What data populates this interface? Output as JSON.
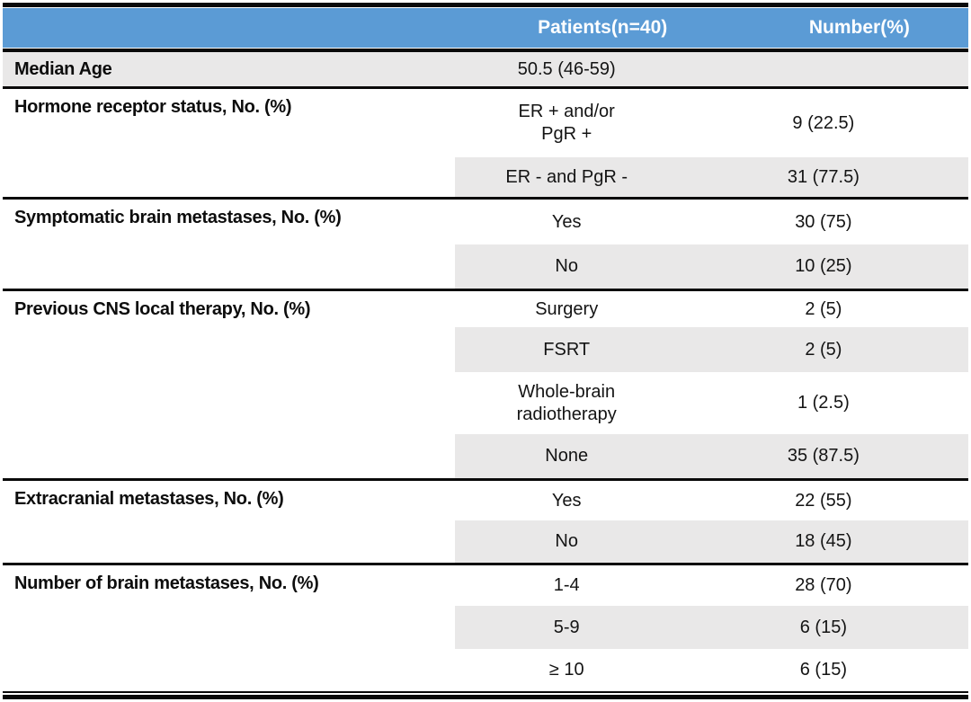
{
  "colors": {
    "header_bg": "#5B9BD5",
    "header_text": "#FFFFFF",
    "row_shade": "#E9E8E8",
    "rule": "#0A0A0A",
    "label_text": "#0D0D0D",
    "value_text": "#141414"
  },
  "header": {
    "col1": "",
    "col2": "Patients(n=40)",
    "col3": "Number(%)"
  },
  "sections": [
    {
      "label": "Median Age",
      "rows": [
        {
          "value": "50.5 (46-59)",
          "number": "",
          "shaded": true,
          "full_width": true
        }
      ]
    },
    {
      "label": "Hormone receptor status, No. (%)",
      "rows": [
        {
          "value": "ER + and/or\nPgR +",
          "number": "9 (22.5)",
          "shaded": false
        },
        {
          "value": "ER - and PgR -",
          "number": "31 (77.5)",
          "shaded": true
        }
      ]
    },
    {
      "label": "Symptomatic brain metastases, No. (%)",
      "rows": [
        {
          "value": "Yes",
          "number": "30 (75)",
          "shaded": false
        },
        {
          "value": "No",
          "number": "10 (25)",
          "shaded": true
        }
      ]
    },
    {
      "label": "Previous CNS local therapy, No. (%)",
      "rows": [
        {
          "value": "Surgery",
          "number": "2 (5)",
          "shaded": false
        },
        {
          "value": "FSRT",
          "number": "2 (5)",
          "shaded": true
        },
        {
          "value": "Whole-brain\nradiotherapy",
          "number": "1 (2.5)",
          "shaded": false
        },
        {
          "value": "None",
          "number": "35 (87.5)",
          "shaded": true
        }
      ]
    },
    {
      "label": "Extracranial metastases, No. (%)",
      "rows": [
        {
          "value": "Yes",
          "number": "22 (55)",
          "shaded": false
        },
        {
          "value": "No",
          "number": "18 (45)",
          "shaded": true
        }
      ]
    },
    {
      "label": "Number of brain metastases, No. (%)",
      "rows": [
        {
          "value": "1-4",
          "number": "28 (70)",
          "shaded": false
        },
        {
          "value": "5-9",
          "number": "6 (15)",
          "shaded": true
        },
        {
          "value": "≥ 10",
          "number": "6 (15)",
          "shaded": false
        }
      ]
    }
  ]
}
